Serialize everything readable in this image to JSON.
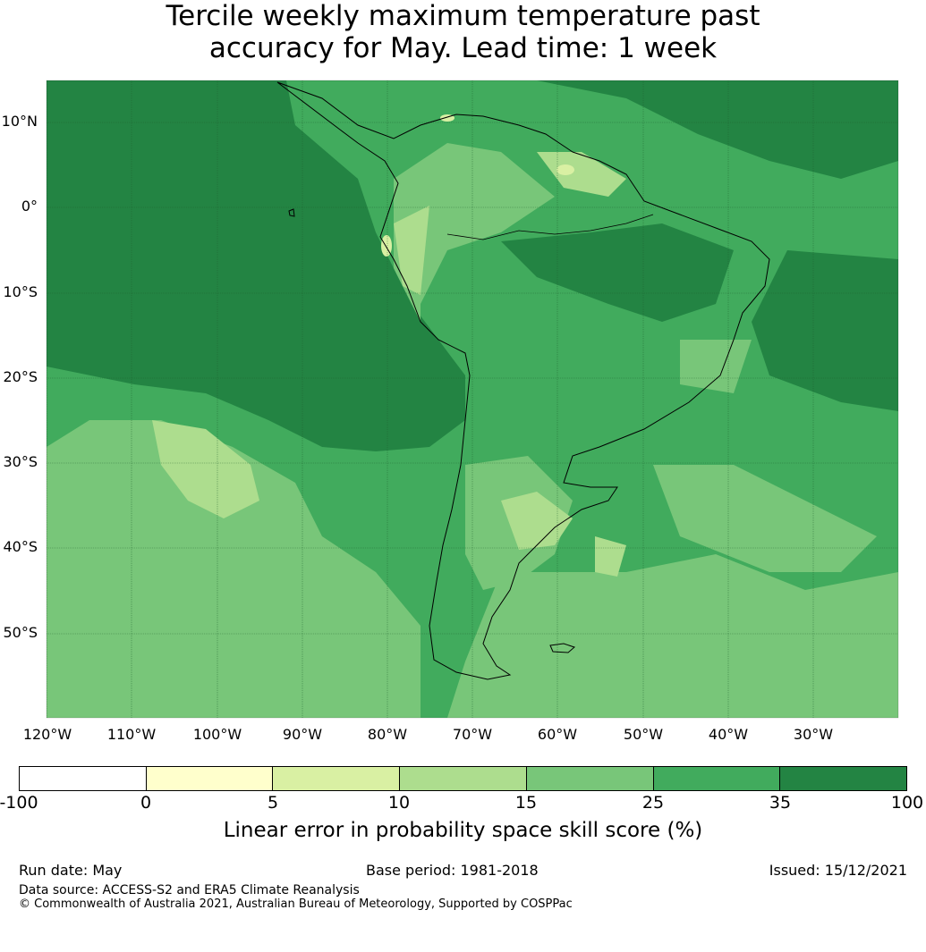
{
  "title": {
    "line1": "Tercile weekly maximum temperature past",
    "line2": "accuracy for May. Lead time: 1 week"
  },
  "map": {
    "lat_labels": [
      "10°N",
      "0°",
      "10°S",
      "20°S",
      "30°S",
      "40°S",
      "50°S"
    ],
    "lon_labels": [
      "120°W",
      "110°W",
      "100°W",
      "90°W",
      "80°W",
      "70°W",
      "60°W",
      "50°W",
      "40°W",
      "30°W"
    ],
    "colors": {
      "c35_100": "#238443",
      "c25_35": "#41ab5d",
      "c15_25": "#78c679",
      "c10_15": "#addd8e",
      "c5_10": "#d9f0a3",
      "c0_5": "#ffffcc",
      "cneg": "#ffffff"
    }
  },
  "colorbar": {
    "ticks": [
      "-100",
      "0",
      "5",
      "10",
      "15",
      "25",
      "35",
      "100"
    ],
    "colors": [
      "#ffffff",
      "#ffffcc",
      "#d9f0a3",
      "#addd8e",
      "#78c679",
      "#41ab5d",
      "#238443"
    ],
    "label": "Linear error in probability space skill score (%)"
  },
  "footer": {
    "run_date": "Run date: May",
    "base_period": "Base period: 1981-2018",
    "issued": "Issued: 15/12/2021",
    "data_source": "Data source: ACCESS-S2 and ERA5 Climate Reanalysis",
    "copyright": "© Commonwealth of Australia 2021, Australian Bureau of Meteorology, Supported by COSPPac"
  }
}
